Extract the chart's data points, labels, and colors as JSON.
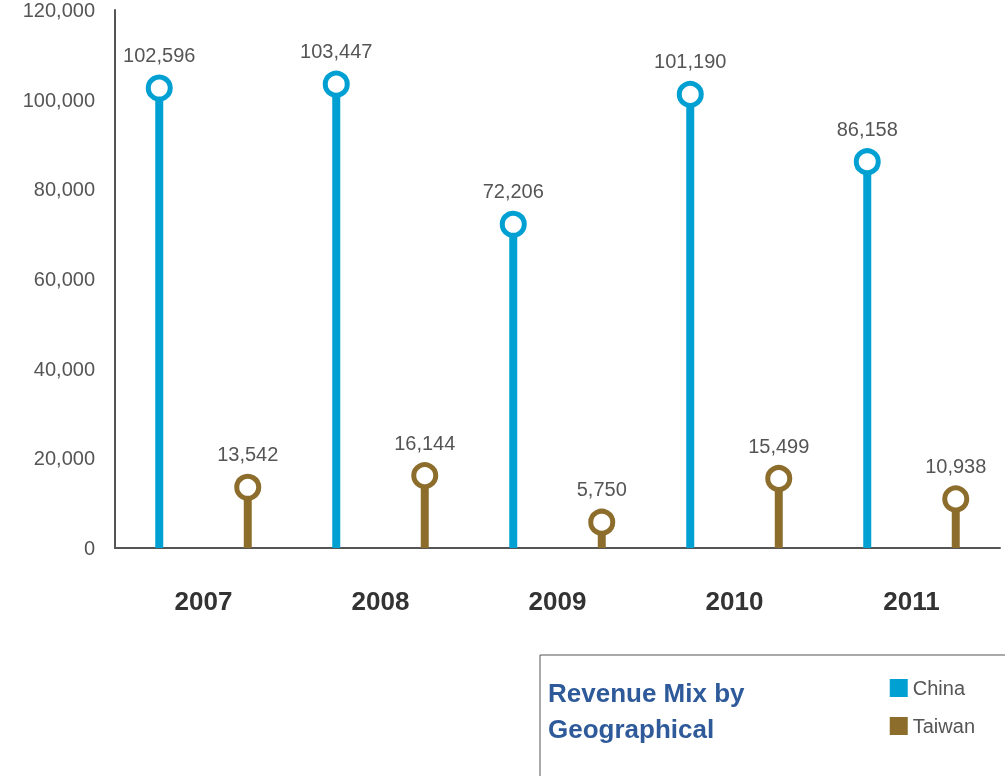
{
  "chart_data": {
    "type": "lollipop",
    "legend_title": "Revenue Mix by Geographical",
    "categories": [
      "2007",
      "2008",
      "2009",
      "2010",
      "2011"
    ],
    "series": [
      {
        "name": "China",
        "color": "#00a0d2",
        "values": [
          102596,
          103447,
          72206,
          101190,
          86158
        ],
        "value_labels": [
          "102,596",
          "103,447",
          "72,206",
          "101,190",
          "86,158"
        ]
      },
      {
        "name": "Taiwan",
        "color": "#8c6d2c",
        "values": [
          13542,
          16144,
          5750,
          15499,
          10938
        ],
        "value_labels": [
          "13,542",
          "16,144",
          "5,750",
          "15,499",
          "10,938"
        ]
      }
    ],
    "ylim": [
      0,
      120000
    ],
    "yticks": [
      0,
      {
        "value": 20000,
        "label": "20,000"
      },
      {
        "value": 40000,
        "label": "40,000"
      },
      {
        "value": 60000,
        "label": "60,000"
      },
      {
        "value": 80000,
        "label": "80,000"
      },
      {
        "value": 100000,
        "label": "100,000"
      },
      {
        "value": 120000,
        "label": "120,000"
      }
    ],
    "grid": false,
    "legend": "bottom right",
    "marker": "circle"
  }
}
